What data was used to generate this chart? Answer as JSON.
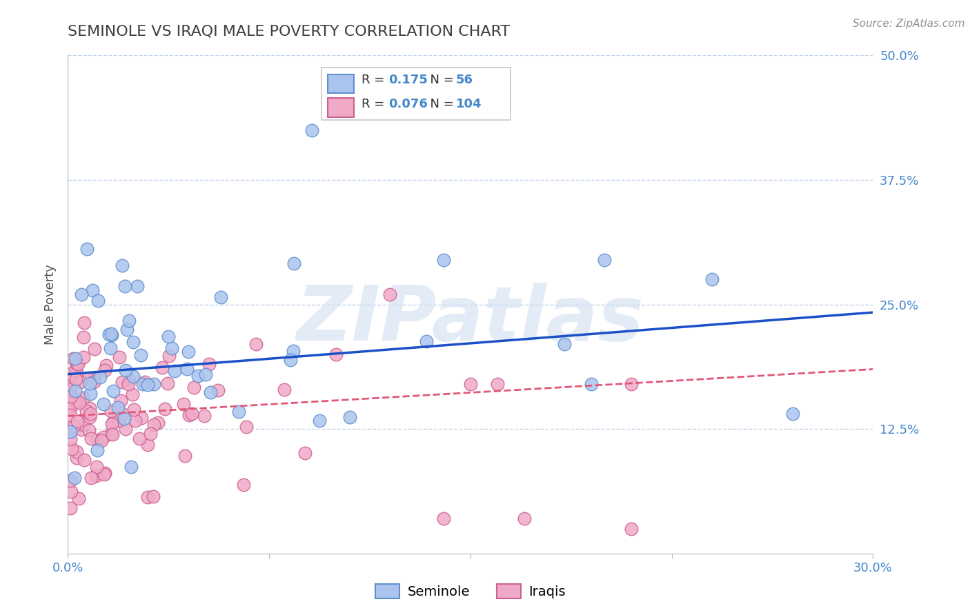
{
  "title": "SEMINOLE VS IRAQI MALE POVERTY CORRELATION CHART",
  "source": "Source: ZipAtlas.com",
  "ylabel": "Male Poverty",
  "xlim": [
    0.0,
    0.3
  ],
  "ylim": [
    0.0,
    0.5
  ],
  "seminole_color": "#aac4ee",
  "iraqi_color": "#f0aac8",
  "seminole_edge": "#6090cc",
  "iraqi_edge": "#cc6090",
  "blue_line_color": "#1a50c8",
  "pink_line_color": "#e05878",
  "watermark": "ZIPatlas",
  "background_color": "#ffffff",
  "title_color": "#404040",
  "axis_color": "#505050",
  "grid_color": "#c0d4e8",
  "tick_label_color": "#4488cc",
  "seminole_R": 0.175,
  "iraqi_R": 0.076,
  "seminole_N": 56,
  "iraqi_N": 104,
  "blue_line_x0": 0.0,
  "blue_line_y0": 0.18,
  "blue_line_x1": 0.3,
  "blue_line_y1": 0.242,
  "pink_line_x0": 0.0,
  "pink_line_y0": 0.138,
  "pink_line_x1": 0.3,
  "pink_line_y1": 0.185
}
